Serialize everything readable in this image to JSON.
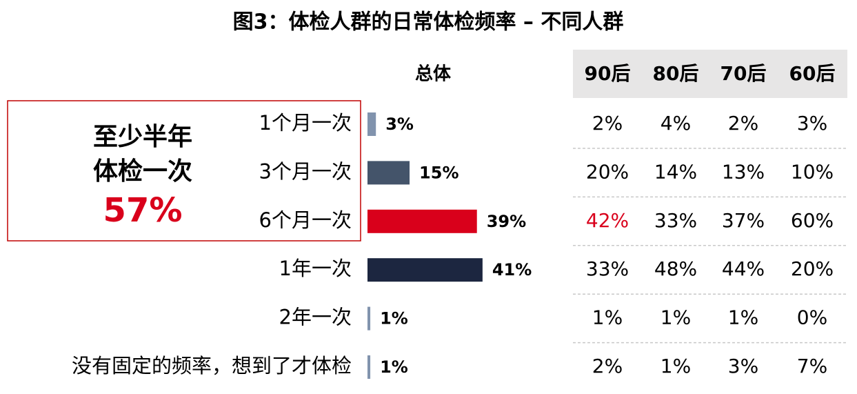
{
  "chart_data": {
    "type": "bar",
    "title": "图3：体检人群的日常体检频率 – 不同人群",
    "column_header": "总体",
    "categories": [
      "1个月一次",
      "3个月一次",
      "6个月一次",
      "1年一次",
      "2年一次",
      "没有固定的频率，想到了才体检"
    ],
    "values": [
      3,
      15,
      39,
      41,
      1,
      1
    ],
    "value_labels": [
      "3%",
      "15%",
      "39%",
      "41%",
      "1%",
      "1%"
    ],
    "colors": [
      "#8193ad",
      "#44546a",
      "#d9001b",
      "#1c2640",
      "#8193ad",
      "#8193ad"
    ],
    "callout": {
      "lines": [
        "至少半年",
        "体检一次"
      ],
      "label": "57%",
      "color": "#d9001b"
    },
    "table": {
      "columns": [
        "90后",
        "80后",
        "70后",
        "60后"
      ],
      "rows": [
        [
          "2%",
          "4%",
          "2%",
          "3%"
        ],
        [
          "20%",
          "14%",
          "13%",
          "10%"
        ],
        [
          "42%",
          "33%",
          "37%",
          "60%"
        ],
        [
          "33%",
          "48%",
          "44%",
          "20%"
        ],
        [
          "1%",
          "1%",
          "1%",
          "0%"
        ],
        [
          "2%",
          "1%",
          "3%",
          "7%"
        ]
      ],
      "highlight_cell": [
        2,
        0
      ],
      "highlight_color": "#d9001b"
    }
  }
}
